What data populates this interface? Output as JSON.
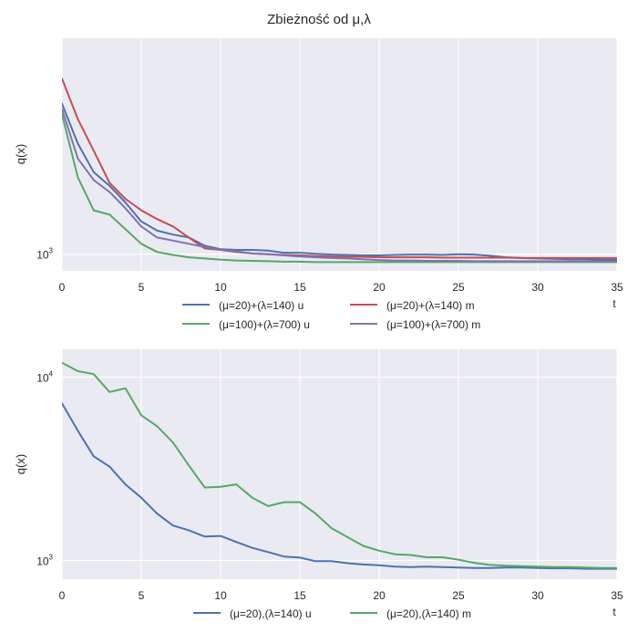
{
  "title": "Zbieżność od μ,λ",
  "chart_data": [
    {
      "type": "line",
      "ylabel": "q(x)",
      "xlabel": "t",
      "yscale": "log",
      "xlim": [
        0,
        35
      ],
      "ylim": [
        800,
        18000
      ],
      "xticks": [
        0,
        5,
        10,
        15,
        20,
        25,
        30,
        35
      ],
      "yticks": [
        {
          "value": 1000,
          "base": "10",
          "exp": "3"
        }
      ],
      "grid": true,
      "legend_position": "bottom",
      "x": [
        0,
        1,
        2,
        3,
        4,
        5,
        6,
        7,
        8,
        9,
        10,
        11,
        12,
        13,
        14,
        15,
        16,
        17,
        18,
        19,
        20,
        21,
        22,
        23,
        24,
        25,
        26,
        27,
        28,
        29,
        30,
        31,
        32,
        33,
        34,
        35
      ],
      "series": [
        {
          "name": "(μ=20)+(λ=140) u",
          "color": "#4c72b0",
          "values": [
            7500,
            4400,
            3000,
            2500,
            2000,
            1550,
            1370,
            1300,
            1250,
            1120,
            1070,
            1060,
            1060,
            1050,
            1020,
            1020,
            1005,
            995,
            990,
            985,
            985,
            990,
            995,
            995,
            990,
            1000,
            995,
            980,
            960,
            950,
            945,
            940,
            935,
            935,
            930,
            930
          ]
        },
        {
          "name": "(μ=20)+(λ=140) m",
          "color": "#c44e52",
          "values": [
            10500,
            6100,
            4000,
            2600,
            2100,
            1800,
            1600,
            1450,
            1250,
            1080,
            1060,
            1030,
            1010,
            1000,
            990,
            985,
            975,
            970,
            965,
            965,
            960,
            960,
            960,
            960,
            955,
            955,
            955,
            955,
            955,
            950,
            950,
            950,
            950,
            950,
            950,
            950
          ]
        },
        {
          "name": "(μ=100)+(λ=700) u",
          "color": "#55a868",
          "values": [
            6500,
            2800,
            1800,
            1700,
            1400,
            1150,
            1030,
            990,
            960,
            945,
            930,
            920,
            915,
            910,
            905,
            905,
            900,
            900,
            900,
            900,
            900,
            900,
            900,
            900,
            900,
            900,
            900,
            900,
            900,
            900,
            900,
            900,
            900,
            900,
            900,
            900
          ]
        },
        {
          "name": "(μ=100)+(λ=700) m",
          "color": "#8172b2",
          "values": [
            7000,
            3600,
            2700,
            2300,
            1850,
            1450,
            1250,
            1200,
            1150,
            1100,
            1060,
            1040,
            1010,
            1000,
            985,
            970,
            960,
            950,
            945,
            935,
            925,
            920,
            920,
            915,
            915,
            915,
            910,
            910,
            910,
            910,
            910,
            910,
            910,
            910,
            910,
            910
          ]
        }
      ]
    },
    {
      "type": "line",
      "ylabel": "q(x)",
      "xlabel": "t",
      "yscale": "log",
      "xlim": [
        0,
        35
      ],
      "ylim": [
        790,
        14200
      ],
      "xticks": [
        0,
        5,
        10,
        15,
        20,
        25,
        30,
        35
      ],
      "yticks": [
        {
          "value": 1000,
          "base": "10",
          "exp": "3"
        },
        {
          "value": 10000,
          "base": "10",
          "exp": "4"
        }
      ],
      "grid": true,
      "legend_position": "bottom",
      "x": [
        0,
        1,
        2,
        3,
        4,
        5,
        6,
        7,
        8,
        9,
        10,
        11,
        12,
        13,
        14,
        15,
        16,
        17,
        18,
        19,
        20,
        21,
        22,
        23,
        24,
        25,
        26,
        27,
        28,
        29,
        30,
        31,
        32,
        33,
        34,
        35
      ],
      "series": [
        {
          "name": "(μ=20),(λ=140) u",
          "color": "#4c72b0",
          "values": [
            7200,
            5100,
            3700,
            3250,
            2600,
            2200,
            1800,
            1550,
            1460,
            1350,
            1360,
            1260,
            1170,
            1110,
            1050,
            1035,
            990,
            990,
            965,
            950,
            940,
            925,
            920,
            925,
            920,
            915,
            910,
            910,
            915,
            915,
            910,
            905,
            905,
            900,
            900,
            900
          ]
        },
        {
          "name": "(μ=20),(λ=140) m",
          "color": "#55a868",
          "values": [
            12000,
            10800,
            10400,
            8300,
            8700,
            6200,
            5400,
            4400,
            3300,
            2500,
            2520,
            2600,
            2200,
            1980,
            2080,
            2080,
            1800,
            1500,
            1340,
            1200,
            1130,
            1080,
            1070,
            1040,
            1040,
            1010,
            970,
            945,
            935,
            930,
            925,
            920,
            920,
            915,
            910,
            910
          ]
        }
      ]
    }
  ]
}
